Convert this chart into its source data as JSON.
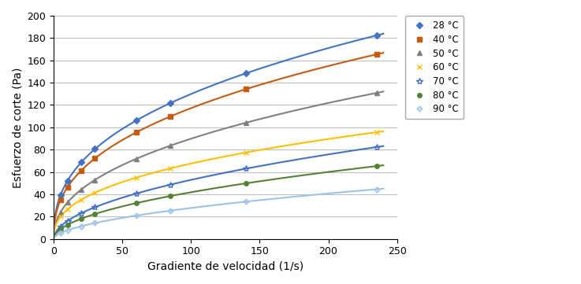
{
  "title": "",
  "xlabel": "Gradiente de velocidad (1/s)",
  "ylabel": "Esfuerzo de corte (Pa)",
  "xlim": [
    0,
    250
  ],
  "ylim": [
    0,
    200
  ],
  "xticks": [
    0,
    50,
    100,
    150,
    200,
    250
  ],
  "yticks": [
    0,
    20,
    40,
    60,
    80,
    100,
    120,
    140,
    160,
    180,
    200
  ],
  "series": [
    {
      "label": "28 °C",
      "color": "#4472C4",
      "marker": "D",
      "marker_size": 4,
      "linewidth": 1.5,
      "x": [
        5,
        10,
        20,
        30,
        60,
        85,
        140,
        235
      ],
      "y": [
        40,
        53,
        66,
        80,
        106,
        122,
        150,
        183
      ]
    },
    {
      "label": "40 °C",
      "color": "#C55A11",
      "marker": "s",
      "marker_size": 4,
      "linewidth": 1.5,
      "x": [
        5,
        10,
        20,
        30,
        60,
        85,
        140,
        235
      ],
      "y": [
        30,
        49,
        63,
        83,
        96,
        122,
        124,
        150
      ]
    },
    {
      "label": "50 °C",
      "color": "#808080",
      "marker": "^",
      "marker_size": 4,
      "linewidth": 1.5,
      "x": [
        5,
        10,
        20,
        30,
        60,
        85,
        140,
        235
      ],
      "y": [
        19,
        36,
        47,
        63,
        74,
        93,
        93,
        116
      ]
    },
    {
      "label": "60 °C",
      "color": "#FFC000",
      "marker": "x",
      "marker_size": 5,
      "linewidth": 1.5,
      "x": [
        5,
        10,
        20,
        30,
        60,
        85,
        140,
        235
      ],
      "y": [
        18,
        27,
        35,
        47,
        56,
        71,
        71,
        88
      ]
    },
    {
      "label": "70 °C",
      "color": "#4472C4",
      "marker": "*",
      "marker_size": 6,
      "linewidth": 1.5,
      "x": [
        5,
        10,
        20,
        30,
        60,
        85,
        140,
        235
      ],
      "y": [
        8,
        19,
        26,
        35,
        41,
        55,
        55,
        71
      ]
    },
    {
      "label": "80 °C",
      "color": "#548235",
      "marker": "o",
      "marker_size": 4,
      "linewidth": 1.5,
      "x": [
        5,
        10,
        20,
        30,
        60,
        85,
        140,
        235
      ],
      "y": [
        7,
        14,
        19,
        26,
        33,
        44,
        45,
        57
      ]
    },
    {
      "label": "90 °C",
      "color": "#9DC3E6",
      "marker": "P",
      "marker_size": 4,
      "linewidth": 1.5,
      "x": [
        5,
        10,
        20,
        30,
        60,
        85,
        140,
        235
      ],
      "y": [
        4,
        9,
        12,
        17,
        21,
        30,
        30,
        38
      ]
    }
  ],
  "background_color": "#FFFFFF",
  "grid_color": "#C0C0C0",
  "legend_fontsize": 8.5,
  "axis_label_fontsize": 10,
  "tick_fontsize": 9
}
